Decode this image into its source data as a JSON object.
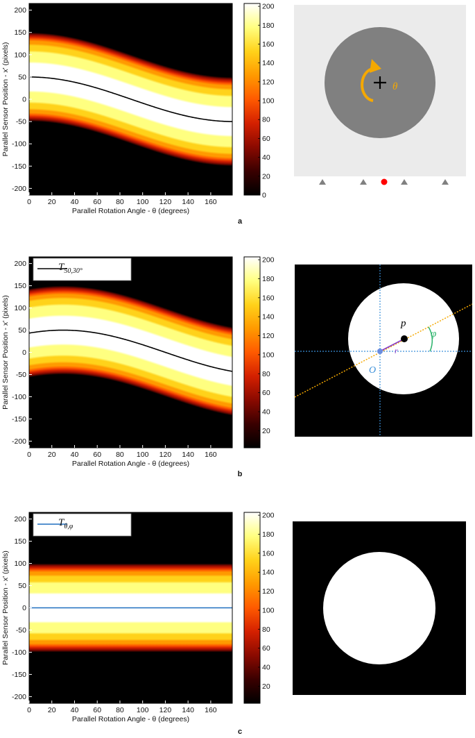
{
  "colors": {
    "colormap": [
      "#000000",
      "#3a0000",
      "#8a0a00",
      "#d42000",
      "#ff5a00",
      "#ff9a00",
      "#ffd21a",
      "#ffff80",
      "#ffffff"
    ],
    "phantom_bg": "#ebebeb",
    "disk_gray": "#808080",
    "rotation_arrow": "#f5a800",
    "detector_marker": "#808080",
    "source_dot": "#ff0000",
    "guide_lines": "#3a8fd9",
    "orientation_line": "#f5a800",
    "angle_arc": "#2bb36b",
    "radius_line": "#8a3fc8",
    "origin_dot": "#6a8de0",
    "trace_line_c": "#1f6fbf"
  },
  "panels": [
    {
      "id": "a",
      "label": "a",
      "chart_data": {
        "type": "heatmap",
        "xlabel": "Parallel Rotation Angle - θ (degrees)",
        "ylabel": "Parallel Sensor Position - x' (pixels)",
        "xlim": [
          0,
          179
        ],
        "ylim": [
          -215,
          215
        ],
        "xticks": [
          0,
          20,
          40,
          60,
          80,
          100,
          120,
          140,
          160
        ],
        "yticks": [
          200,
          150,
          100,
          50,
          0,
          -50,
          -100,
          -150,
          -200
        ],
        "colorbar": {
          "min": 0,
          "max": 203,
          "ticks": [
            200,
            180,
            160,
            140,
            120,
            100,
            80,
            60,
            40,
            20,
            0
          ]
        },
        "object": {
          "radius": 100,
          "offset": 50,
          "phase_deg": 0
        },
        "trace": {
          "label": "",
          "offset": 50,
          "phase_deg": 0,
          "color": "#000000"
        }
      },
      "phantom": {
        "type": "rotation",
        "rotation_symbol": "θ"
      }
    },
    {
      "id": "b",
      "label": "b",
      "chart_data": {
        "type": "heatmap",
        "xlabel": "Parallel Rotation Angle - θ (degrees)",
        "ylabel": "Parallel Sensor Position - x' (pixels)",
        "xlim": [
          0,
          179
        ],
        "ylim": [
          -215,
          215
        ],
        "xticks": [
          0,
          20,
          40,
          60,
          80,
          100,
          120,
          140,
          160
        ],
        "yticks": [
          200,
          150,
          100,
          50,
          0,
          -50,
          -100,
          -150,
          -200
        ],
        "colorbar": {
          "min": 2,
          "max": 203,
          "ticks": [
            200,
            180,
            160,
            140,
            120,
            100,
            80,
            60,
            40,
            20
          ]
        },
        "object": {
          "radius": 100,
          "offset": 50,
          "phase_deg": 30
        },
        "trace": {
          "label": "T",
          "label_sub": "50,30°",
          "offset": 50,
          "phase_deg": 30,
          "color": "#000000"
        }
      },
      "phantom": {
        "type": "polar",
        "point_symbol": "p",
        "origin_symbol": "O",
        "radius_symbol": "r",
        "angle_symbol": "φ"
      }
    },
    {
      "id": "c",
      "label": "c",
      "chart_data": {
        "type": "heatmap",
        "xlabel": "Parallel Rotation Angle - θ (degrees)",
        "ylabel": "Parallel Sensor Position - x' (pixels)",
        "xlim": [
          0,
          179
        ],
        "ylim": [
          -215,
          215
        ],
        "xticks": [
          0,
          20,
          40,
          60,
          80,
          100,
          120,
          140,
          160
        ],
        "yticks": [
          200,
          150,
          100,
          50,
          0,
          -50,
          -100,
          -150,
          -200
        ],
        "colorbar": {
          "min": 2,
          "max": 203,
          "ticks": [
            200,
            180,
            160,
            140,
            120,
            100,
            80,
            60,
            40,
            20
          ]
        },
        "object": {
          "radius": 100,
          "offset": 0,
          "phase_deg": 0
        },
        "trace": {
          "label": "T",
          "label_sub": "θ,φ",
          "offset": 0,
          "phase_deg": 0,
          "color": "#1f6fbf"
        }
      },
      "phantom": {
        "type": "centered"
      }
    }
  ]
}
